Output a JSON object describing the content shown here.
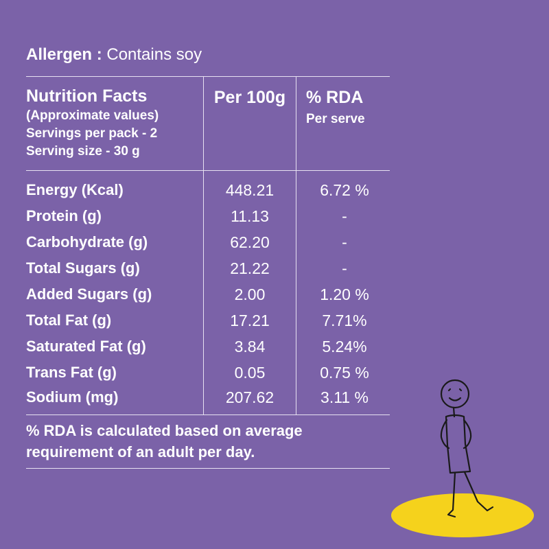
{
  "allergen": {
    "label": "Allergen :",
    "value": "Contains soy"
  },
  "header": {
    "title": "Nutrition Facts",
    "lines": [
      "(Approximate values)",
      "Servings per pack - 2",
      "Serving size - 30 g"
    ],
    "per100g": "Per 100g",
    "rda": "% RDA",
    "rda_sub": "Per serve"
  },
  "rows": [
    {
      "name": "Energy (Kcal)",
      "per100g": "448.21",
      "rda": "6.72 %"
    },
    {
      "name": "Protein (g)",
      "per100g": "11.13",
      "rda": "-"
    },
    {
      "name": "Carbohydrate (g)",
      "per100g": "62.20",
      "rda": "-"
    },
    {
      "name": "Total Sugars (g)",
      "per100g": "21.22",
      "rda": "-"
    },
    {
      "name": "Added Sugars (g)",
      "per100g": "2.00",
      "rda": "1.20 %"
    },
    {
      "name": "Total Fat (g)",
      "per100g": "17.21",
      "rda": "7.71%"
    },
    {
      "name": "Saturated Fat (g)",
      "per100g": "3.84",
      "rda": "5.24%"
    },
    {
      "name": "Trans Fat (g)",
      "per100g": "0.05",
      "rda": "0.75 %"
    },
    {
      "name": "Sodium (mg)",
      "per100g": "207.62",
      "rda": "3.11 %"
    }
  ],
  "footnote": {
    "line1": "% RDA is calculated based on average",
    "line2": "requirement of an adult per day."
  },
  "colors": {
    "background": "#7b62a8",
    "text": "#ffffff",
    "accent": "#f5d21c"
  },
  "illustration": {
    "icon": "stick-figure-icon"
  }
}
